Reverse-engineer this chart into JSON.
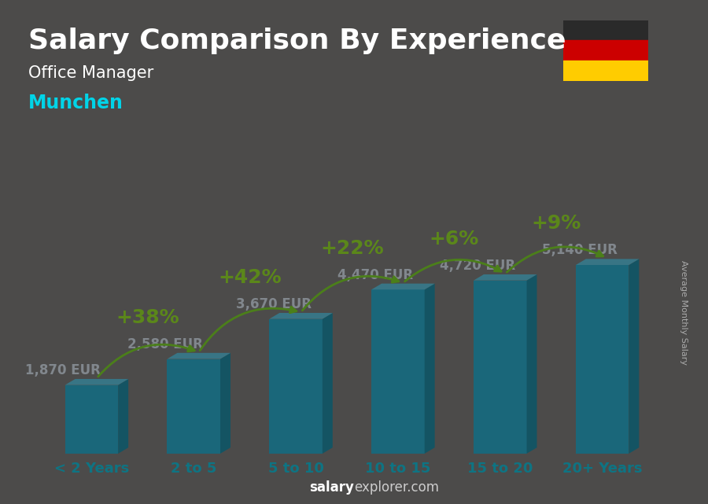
{
  "title": "Salary Comparison By Experience",
  "subtitle1": "Office Manager",
  "subtitle2": "Munchen",
  "ylabel": "Average Monthly Salary",
  "footer_bold": "salary",
  "footer_normal": "explorer.com",
  "categories": [
    "< 2 Years",
    "2 to 5",
    "5 to 10",
    "10 to 15",
    "15 to 20",
    "20+ Years"
  ],
  "values": [
    1870,
    2580,
    3670,
    4470,
    4720,
    5140
  ],
  "labels": [
    "1,870 EUR",
    "2,580 EUR",
    "3,670 EUR",
    "4,470 EUR",
    "4,720 EUR",
    "5,140 EUR"
  ],
  "pct_labels": [
    "+38%",
    "+42%",
    "+22%",
    "+6%",
    "+9%"
  ],
  "bar_face_color": "#1ab8d4",
  "bar_side_color": "#0e8fa3",
  "bar_top_color": "#5dd8ec",
  "bg_overlay_color": "#1a2a35",
  "bg_overlay_alpha": 0.45,
  "title_color": "#ffffff",
  "subtitle1_color": "#ffffff",
  "subtitle2_color": "#00d4e8",
  "label_color": "#ffffff",
  "pct_color": "#aaff00",
  "arrow_color": "#88ee00",
  "xtick_color": "#00d4e8",
  "ylabel_color": "#aaaaaa",
  "footer_color": "#cccccc",
  "footer_bold_color": "#ffffff",
  "title_fontsize": 26,
  "subtitle1_fontsize": 15,
  "subtitle2_fontsize": 17,
  "ylabel_fontsize": 8,
  "label_fontsize": 12,
  "pct_fontsize": 18,
  "xtick_fontsize": 13,
  "footer_fontsize": 12,
  "flag_black": "#2a2a2a",
  "flag_red": "#cc0000",
  "flag_yellow": "#ffcc00"
}
